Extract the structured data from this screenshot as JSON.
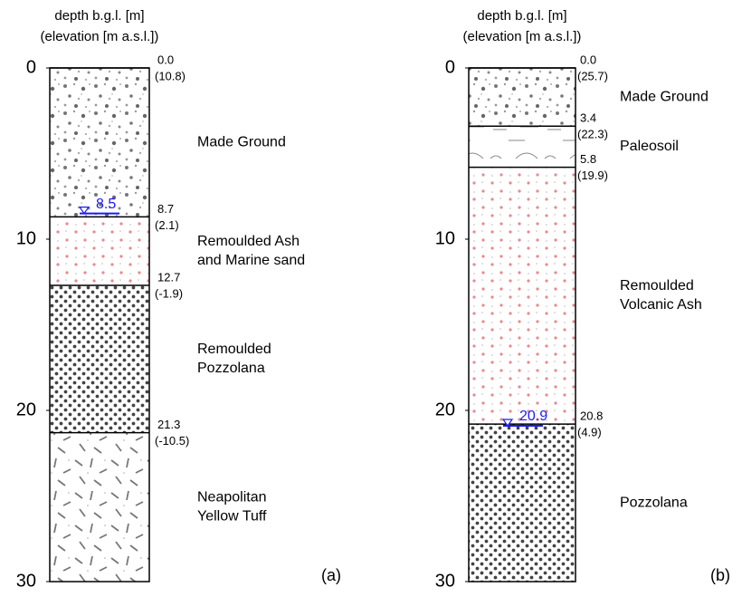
{
  "panels": [
    {
      "axis_title": "depth b.g.l. [m]",
      "axis_subtitle": "(elevation [m a.s.l.])",
      "panel_label": "(a)",
      "ylim": [
        0,
        30
      ],
      "yticks": [
        0,
        10,
        20,
        30
      ],
      "boundaries": [
        {
          "depth": {
            "value": 0,
            "label": "0.0"
          },
          "elevation": "(10.8)"
        },
        {
          "depth": {
            "value": 8.7,
            "label": "8.7"
          },
          "elevation": "(2.1)"
        },
        {
          "depth": {
            "value": 12.7,
            "label": "12.7"
          },
          "elevation": "(-1.9)"
        },
        {
          "depth": {
            "value": 21.3,
            "label": "21.3"
          },
          "elevation": "(-10.5)"
        }
      ],
      "layers": [
        [
          "Made Ground"
        ],
        [
          "Remoulded Ash",
          "and Marine sand"
        ],
        [
          "Remoulded",
          "Pozzolana"
        ],
        [
          "Neapolitan",
          "Yellow Tuff"
        ]
      ],
      "water_table": 8.5
    },
    {
      "axis_title": "depth b.g.l. [m]",
      "axis_subtitle": "(elevation [m a.s.l.])",
      "panel_label": "(b)",
      "ylim": [
        0,
        30
      ],
      "yticks": [
        0,
        10,
        20,
        30
      ],
      "boundaries": [
        {
          "depth": {
            "value": 0,
            "label": "0.0"
          },
          "elevation": "(25.7)"
        },
        {
          "depth": {
            "value": 3.4,
            "label": "3.4"
          },
          "elevation": "(22.3)"
        },
        {
          "depth": {
            "value": 5.8,
            "label": "5.8"
          },
          "elevation": "(19.9)"
        },
        {
          "depth": {
            "value": 20.8,
            "label": "20.8"
          },
          "elevation": "(4.9)"
        }
      ],
      "layers": [
        [
          "Made Ground"
        ],
        [
          "Paleosoil"
        ],
        [
          "Remoulded",
          "Volcanic Ash"
        ],
        [
          "Pozzolana"
        ]
      ],
      "water_table": 20.9
    }
  ]
}
